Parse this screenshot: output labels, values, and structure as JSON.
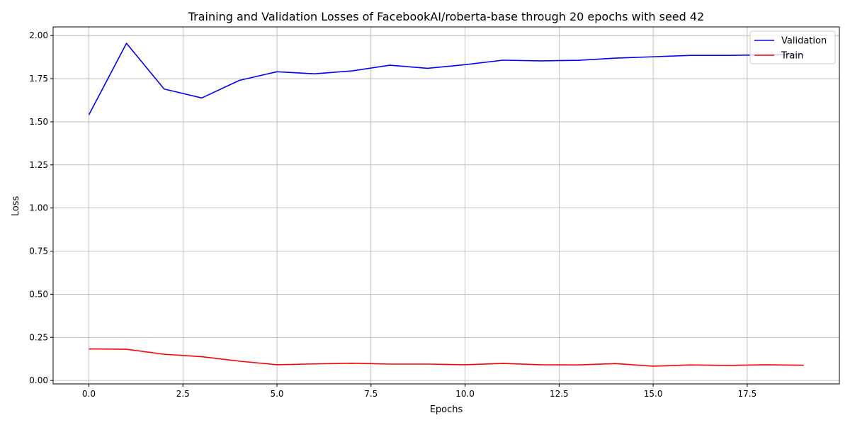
{
  "chart_data": {
    "type": "line",
    "title": "Training and Validation Losses of FacebookAI/roberta-base through 20 epochs with seed 42",
    "xlabel": "Epochs",
    "ylabel": "Loss",
    "x": [
      0,
      1,
      2,
      3,
      4,
      5,
      6,
      7,
      8,
      9,
      10,
      11,
      12,
      13,
      14,
      15,
      16,
      17,
      18,
      19
    ],
    "series": [
      {
        "name": "Validation",
        "color": "#0000ff",
        "values": [
          1.54,
          1.955,
          1.69,
          1.638,
          1.74,
          1.79,
          1.778,
          1.795,
          1.828,
          1.81,
          1.831,
          1.857,
          1.853,
          1.856,
          1.869,
          1.877,
          1.885,
          1.885,
          1.888,
          1.89
        ]
      },
      {
        "name": "Train",
        "color": "#ff0000",
        "values": [
          0.183,
          0.181,
          0.152,
          0.138,
          0.112,
          0.091,
          0.096,
          0.1,
          0.095,
          0.095,
          0.091,
          0.099,
          0.091,
          0.09,
          0.098,
          0.083,
          0.09,
          0.087,
          0.091,
          0.088
        ]
      }
    ],
    "xlim": [
      -0.95,
      19.95
    ],
    "ylim": [
      -0.02,
      2.05
    ],
    "xticks": [
      0.0,
      2.5,
      5.0,
      7.5,
      10.0,
      12.5,
      15.0,
      17.5
    ],
    "xtick_labels": [
      "0.0",
      "2.5",
      "5.0",
      "7.5",
      "10.0",
      "12.5",
      "15.0",
      "17.5"
    ],
    "yticks": [
      0.0,
      0.25,
      0.5,
      0.75,
      1.0,
      1.25,
      1.5,
      1.75,
      2.0
    ],
    "ytick_labels": [
      "0.00",
      "0.25",
      "0.50",
      "0.75",
      "1.00",
      "1.25",
      "1.50",
      "1.75",
      "2.00"
    ],
    "grid": true,
    "legend_position": "top-right"
  }
}
